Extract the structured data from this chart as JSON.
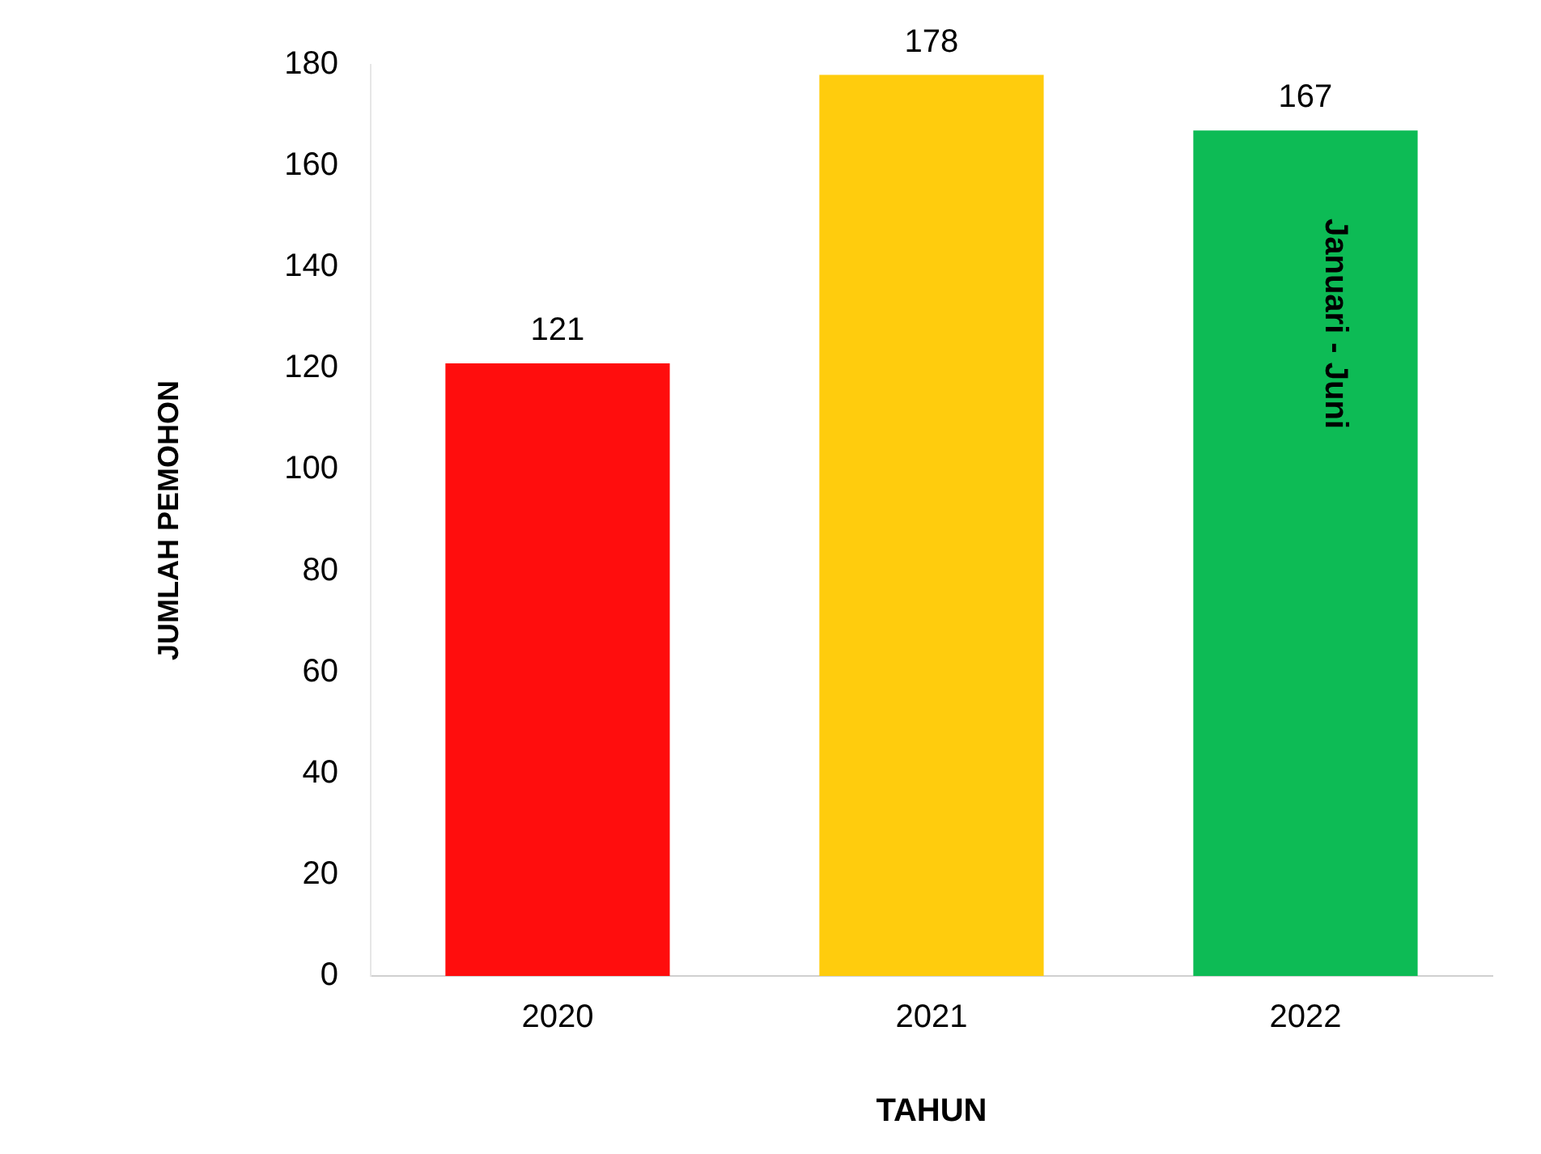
{
  "chart_data": {
    "type": "bar",
    "xlabel": "TAHUN",
    "ylabel": "JUMLAH PEMOHON",
    "categories": [
      "2020",
      "2021",
      "2022"
    ],
    "values": [
      121,
      178,
      167
    ],
    "colors": [
      "#ff0d0d",
      "#ffcc0d",
      "#0dbb55"
    ],
    "ylim": [
      0,
      180
    ],
    "yticks": [
      0,
      20,
      40,
      60,
      80,
      100,
      120,
      140,
      160,
      180
    ],
    "grid": false,
    "legend": false,
    "data_labels": true,
    "annotations": [
      "Januari - Juni"
    ]
  }
}
